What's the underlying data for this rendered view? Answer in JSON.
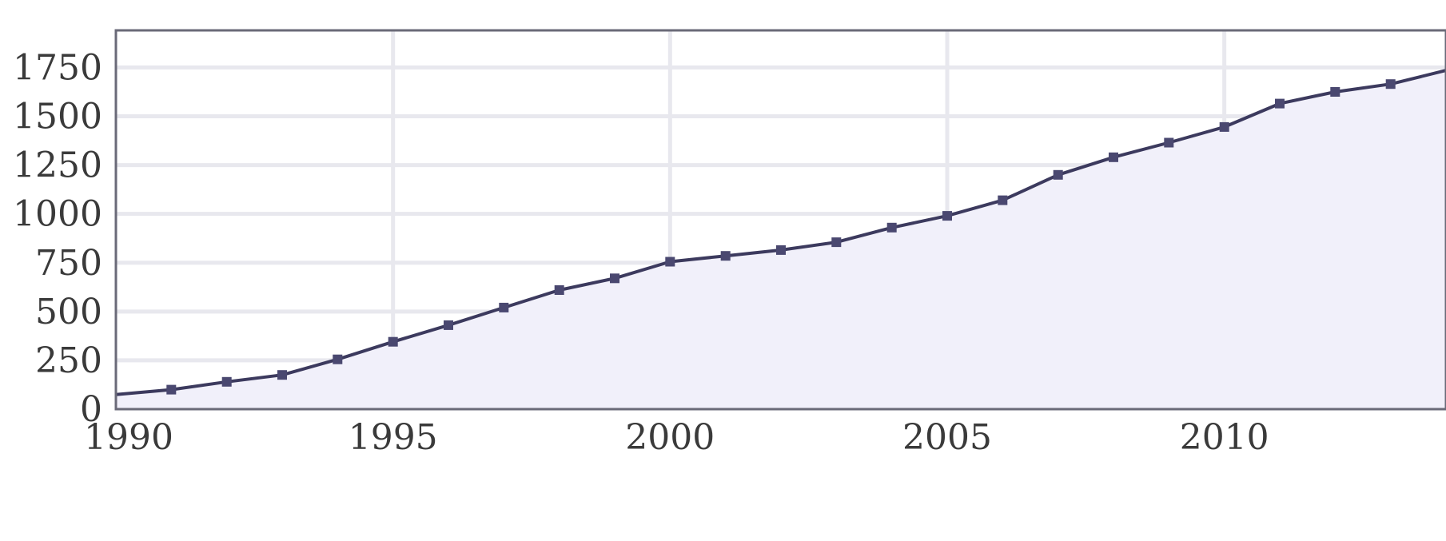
{
  "colors": {
    "line": "#3c3a5e",
    "area": "#f1f0fa",
    "marker": "#4a4870"
  },
  "chart_data": {
    "type": "area",
    "title": "",
    "xlabel": "",
    "ylabel": "",
    "x": [
      1990,
      1991,
      1992,
      1993,
      1994,
      1995,
      1996,
      1997,
      1998,
      1999,
      2000,
      2001,
      2002,
      2003,
      2004,
      2005,
      2006,
      2007,
      2008,
      2009,
      2010,
      2011,
      2012,
      2013,
      2014
    ],
    "series": [
      {
        "values": [
          75,
          100,
          140,
          175,
          255,
          345,
          430,
          520,
          610,
          670,
          755,
          785,
          815,
          855,
          930,
          990,
          1070,
          1200,
          1290,
          1365,
          1445,
          1565,
          1625,
          1665,
          1735
        ],
        "show_markers": [
          false,
          true,
          true,
          true,
          true,
          true,
          true,
          true,
          true,
          true,
          true,
          true,
          true,
          true,
          true,
          true,
          true,
          true,
          true,
          true,
          true,
          true,
          true,
          true,
          false
        ]
      }
    ],
    "xlim": [
      1990,
      2014
    ],
    "ylim": [
      0,
      1940
    ],
    "x_ticks": [
      1990,
      1995,
      2000,
      2005,
      2010
    ],
    "x_tick_labels": [
      "1990",
      "1995",
      "2000",
      "2005",
      "2010"
    ],
    "y_ticks": [
      0,
      250,
      500,
      750,
      1000,
      1250,
      1500,
      1750
    ],
    "y_tick_labels": [
      "0",
      "250",
      "500",
      "750",
      "1000",
      "1250",
      "1500",
      "1750"
    ],
    "grid": true,
    "legend": "none"
  }
}
